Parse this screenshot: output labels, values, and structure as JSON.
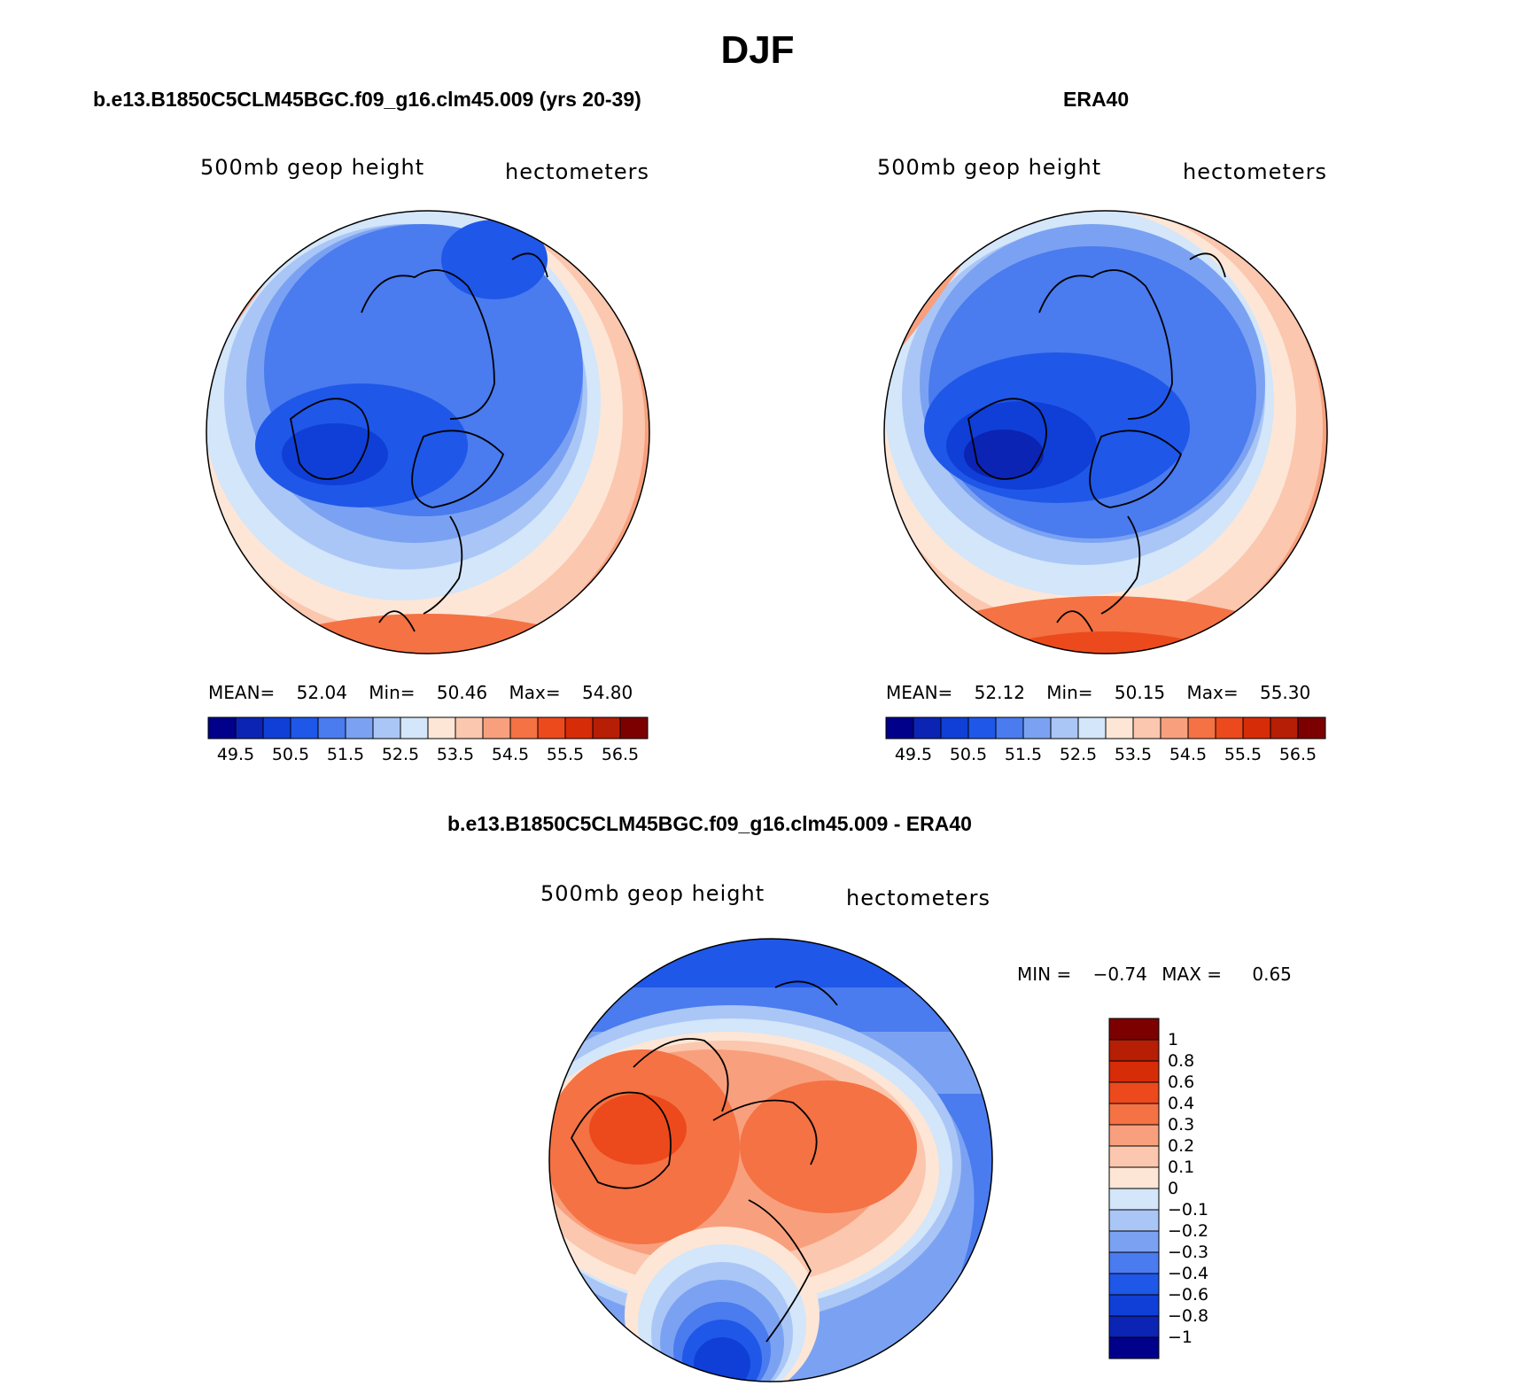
{
  "page_title": "DJF",
  "panels": [
    {
      "title": "b.e13.B1850C5CLM45BGC.f09_g16.clm45.009 (yrs 20-39)",
      "variable_label": "500mb geop height",
      "units_label": "hectometers",
      "stats": {
        "mean_label": "MEAN=",
        "mean": "52.04",
        "min_label": "Min=",
        "min": "50.46",
        "max_label": "Max=",
        "max": "54.80"
      }
    },
    {
      "title": "ERA40",
      "variable_label": "500mb geop height",
      "units_label": "hectometers",
      "stats": {
        "mean_label": "MEAN=",
        "mean": "52.12",
        "min_label": "Min=",
        "min": "50.15",
        "max_label": "Max=",
        "max": "55.30"
      }
    },
    {
      "title": "b.e13.B1850C5CLM45BGC.f09_g16.clm45.009 - ERA40",
      "variable_label": "500mb geop height",
      "units_label": "hectometers",
      "stats": {
        "min_label": "MIN =",
        "min": "−0.74",
        "max_label": "MAX =",
        "max": "0.65"
      }
    }
  ],
  "colorbars": {
    "abs": {
      "colors": [
        "#00008b",
        "#0b24b4",
        "#0f3fd6",
        "#1f57e8",
        "#4a7bef",
        "#7ba2f2",
        "#aac6f6",
        "#d3e6fa",
        "#fde6d6",
        "#fbc7ae",
        "#f8a07e",
        "#f47244",
        "#ec4a1c",
        "#d72c08",
        "#b61e05",
        "#7d0000"
      ],
      "labels": [
        "49.5",
        "50.5",
        "51.5",
        "52.5",
        "53.5",
        "54.5",
        "55.5",
        "56.5"
      ]
    },
    "diff": {
      "colors": [
        "#00008b",
        "#0b24b4",
        "#0f3fd6",
        "#1f57e8",
        "#4a7bef",
        "#7ba2f2",
        "#aac6f6",
        "#d3e6fa",
        "#fde6d6",
        "#fbc7ae",
        "#f8a07e",
        "#f47244",
        "#ec4a1c",
        "#d72c08",
        "#b61e05",
        "#7d0000"
      ],
      "labels": [
        "1",
        "0.8",
        "0.6",
        "0.4",
        "0.3",
        "0.2",
        "0.1",
        "0",
        "−0.1",
        "−0.2",
        "−0.3",
        "−0.4",
        "−0.6",
        "−0.8",
        "−1"
      ]
    }
  }
}
